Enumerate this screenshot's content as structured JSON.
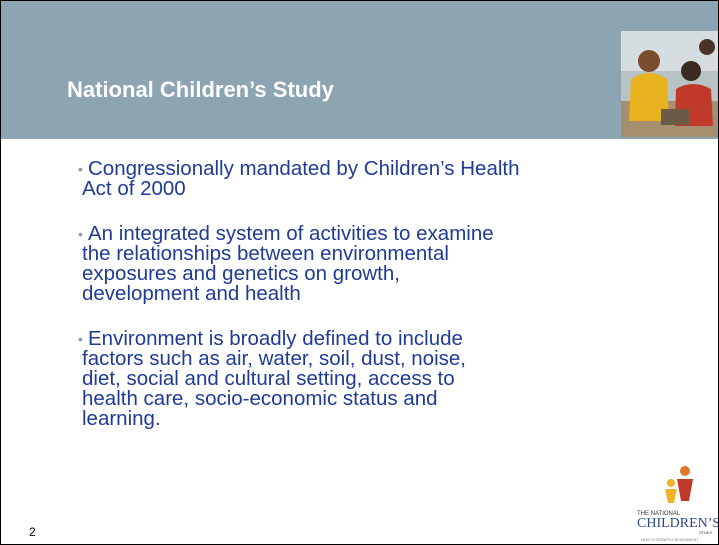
{
  "slide": {
    "title": "National Children’s Study",
    "bullets": [
      [
        "Congressionally mandated by Children’s Health",
        "Act of 2000"
      ],
      [
        "An integrated system of activities to examine",
        "the relationships between environmental",
        "exposures and genetics on growth,",
        "development and health"
      ],
      [
        "Environment is broadly defined to include",
        "factors such as air, water, soil, dust, noise,",
        "diet, social and cultural setting, access to",
        "health care, socio-economic status and",
        "learning."
      ]
    ],
    "slide_number": "2",
    "logo": {
      "line1": "THE NATIONAL",
      "line2": "CHILDREN’S",
      "line3": "STUDY",
      "tagline": "HEALTH GROWTH ENVIRONMENT"
    }
  }
}
